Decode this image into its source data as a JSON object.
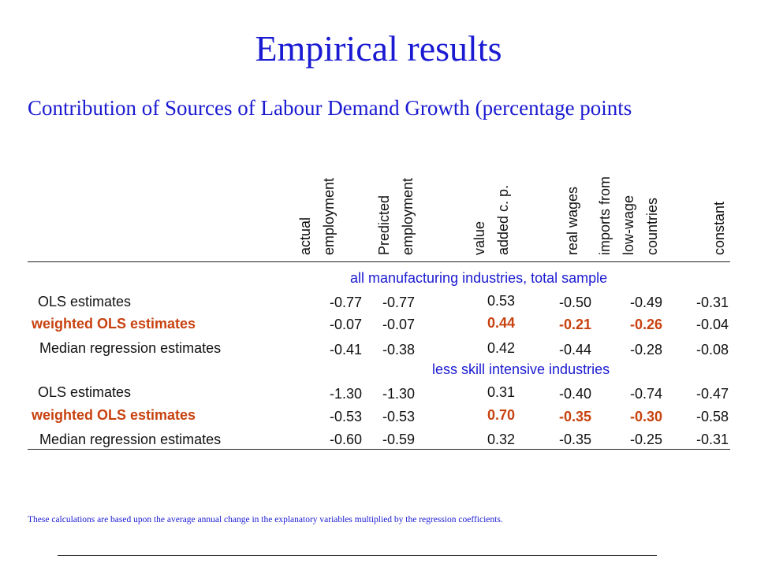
{
  "title": "Empirical results",
  "subtitle": "Contribution of Sources of Labour Demand Growth (percentage points",
  "columns": [
    {
      "label": "actual\nemployment"
    },
    {
      "label": "Predicted\nemployment"
    },
    {
      "label": "value\nadded c. p."
    },
    {
      "label": "real wages"
    },
    {
      "label": "imports from\nlow-wage\ncountries"
    },
    {
      "label": "constant"
    }
  ],
  "sections": [
    {
      "label": "all manufacturing industries, total sample",
      "rows": [
        {
          "label": "OLS estimates",
          "highlight": false,
          "values": [
            "-0.77",
            "-0.77",
            "0.53",
            "-0.50",
            "-0.49",
            "-0.31"
          ],
          "highlight_cols": []
        },
        {
          "label": "weighted OLS estimates",
          "highlight": true,
          "values": [
            "-0.07",
            "-0.07",
            "0.44",
            "-0.21",
            "-0.26",
            "-0.04"
          ],
          "highlight_cols": [
            2,
            3,
            4
          ]
        },
        {
          "label": "Median regression estimates",
          "highlight": false,
          "values": [
            "-0.41",
            "-0.38",
            "0.42",
            "-0.44",
            "-0.28",
            "-0.08"
          ],
          "highlight_cols": []
        }
      ]
    },
    {
      "label": "less skill intensive industries",
      "rows": [
        {
          "label": "OLS estimates",
          "highlight": false,
          "values": [
            "-1.30",
            "-1.30",
            "0.31",
            "-0.40",
            "-0.74",
            "-0.47"
          ],
          "highlight_cols": []
        },
        {
          "label": "weighted OLS estimates",
          "highlight": true,
          "values": [
            "-0.53",
            "-0.53",
            "0.70",
            "-0.35",
            "-0.30",
            "-0.58"
          ],
          "highlight_cols": [
            2,
            3,
            4
          ]
        },
        {
          "label": "Median regression estimates",
          "highlight": false,
          "values": [
            "-0.60",
            "-0.59",
            "0.32",
            "-0.35",
            "-0.25",
            "-0.31"
          ],
          "highlight_cols": []
        }
      ]
    }
  ],
  "footnote": "These calculations are based upon the average annual change in the explanatory variables multiplied by the regression coefficients.",
  "colors": {
    "heading": "#1a1ad2",
    "highlight": "#c8420f",
    "text": "#111111"
  }
}
